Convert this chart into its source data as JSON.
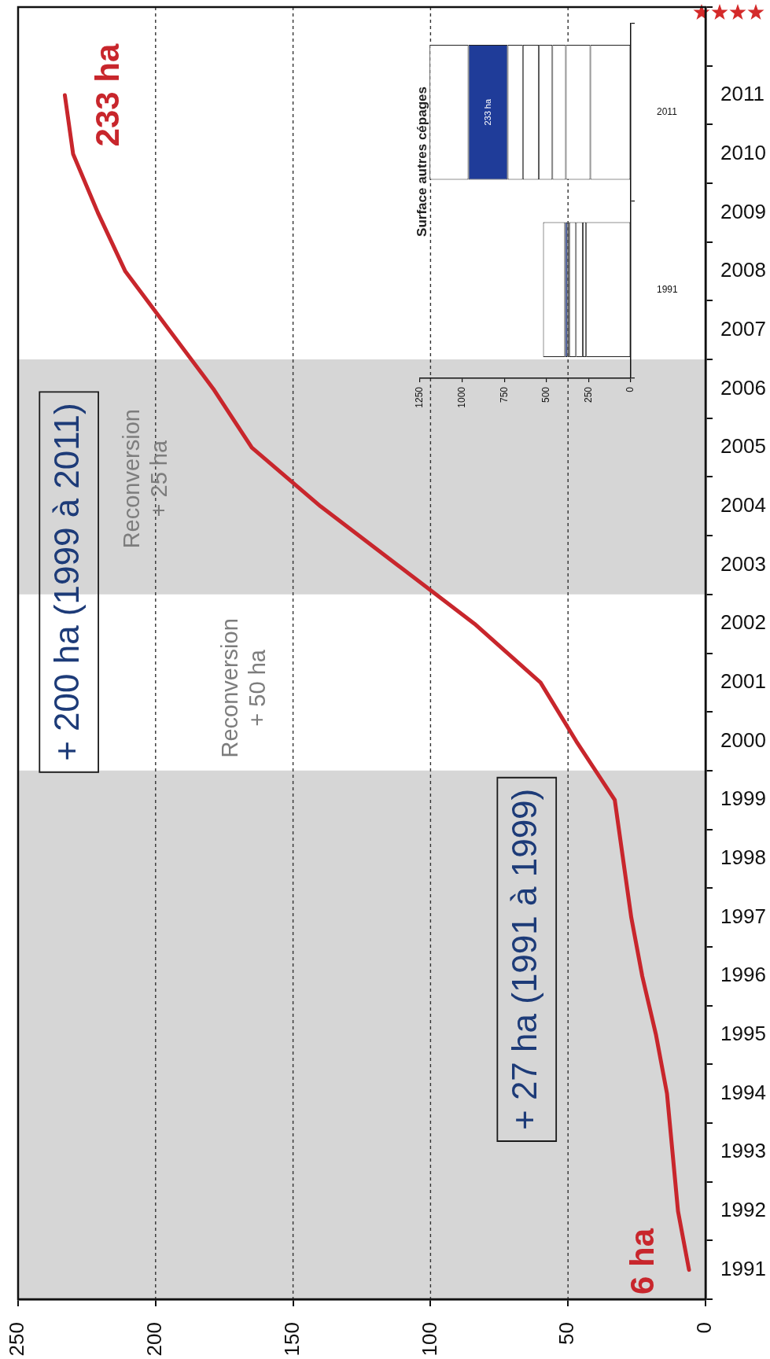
{
  "chart_data": [
    {
      "type": "line",
      "orientation": "horizontal",
      "categories": [
        null,
        "2011",
        "2010",
        "2009",
        "2008",
        "2007",
        "2006",
        "2005",
        "2004",
        "2003",
        "2002",
        "2001",
        "2000",
        "1999",
        "1998",
        "1997",
        "1996",
        "1995",
        "1994",
        "1993",
        "1992",
        "1991"
      ],
      "values": [
        null,
        233,
        230,
        221,
        211,
        195,
        179,
        165,
        140,
        112,
        84,
        60,
        47,
        33,
        30,
        27,
        23,
        18,
        14,
        12,
        10,
        6
      ],
      "color": "#c8262c",
      "value_labels": [
        null,
        "233 ha",
        null,
        null,
        null,
        null,
        null,
        null,
        null,
        null,
        null,
        null,
        null,
        null,
        null,
        null,
        null,
        null,
        null,
        null,
        null,
        "6 ha"
      ],
      "xlim": [
        250,
        0
      ],
      "xticks": [
        250,
        200,
        150,
        100,
        50,
        0
      ],
      "grid": "x",
      "marker": "none",
      "bands": [
        {
          "axis": "y",
          "from": "1991",
          "to": "1999",
          "color": "#d6d6d6"
        },
        {
          "axis": "y",
          "from": "2003",
          "to": "2006",
          "color": "#d6d6d6"
        }
      ],
      "annotations": [
        "+ 27 ha (1991 à 1999)",
        "+ 200 ha (1999 à 2011)",
        "Reconversion\n+ 50 ha",
        "Reconversion\n+ 25 ha"
      ]
    },
    {
      "type": "bar",
      "orientation": "horizontal",
      "stacked": true,
      "title": "Surface autres cépages",
      "categories": [
        "2011",
        "1991"
      ],
      "series": [
        {
          "color": "#ffffff",
          "values": [
            240,
            265
          ]
        },
        {
          "color": "#ffffff",
          "values": [
            145,
            20
          ]
        },
        {
          "color": "#ffffff",
          "values": [
            80,
            40
          ]
        },
        {
          "color": "#ffffff",
          "values": [
            80,
            40
          ]
        },
        {
          "color": "#ffffff",
          "values": [
            95,
            10
          ]
        },
        {
          "color": "#ffffff",
          "values": [
            90,
            null
          ]
        },
        {
          "color": "#1f3c99",
          "values": [
            233,
            15
          ],
          "value_labels": [
            "233 ha",
            null
          ]
        },
        {
          "color": "#ffffff",
          "values": [
            230,
            130
          ]
        }
      ],
      "xlim": [
        1250,
        0
      ],
      "xticks": [
        1250,
        1000,
        750,
        500,
        250,
        0
      ]
    }
  ]
}
